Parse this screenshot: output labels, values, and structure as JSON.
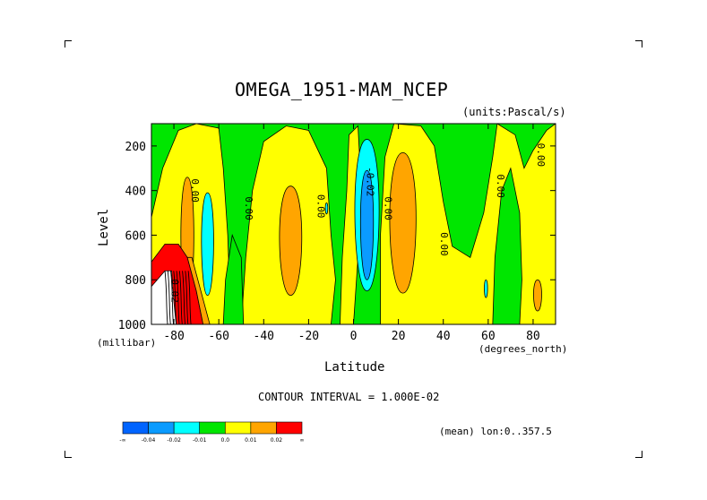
{
  "figure": {
    "title": "OMEGA_1951-MAM_NCEP",
    "units_label": "(units:Pascal/s)",
    "ylabel": "Level",
    "y_unit_label": "(millibar)",
    "xlabel": "Latitude",
    "x_unit_label": "(degrees_north)",
    "contour_interval_label": "CONTOUR INTERVAL = 1.000E-02",
    "mean_label": "(mean) lon:0..357.5"
  },
  "chart_data": {
    "type": "heatmap",
    "title": "OMEGA_1951-MAM_NCEP",
    "xlabel": "Latitude",
    "ylabel": "Level",
    "x_unit": "degrees_north",
    "y_unit": "millibar",
    "units": "Pascal/s",
    "xlim": [
      -90,
      90
    ],
    "ylim": [
      1000,
      100
    ],
    "y_reversed": true,
    "x_ticks": [
      -80,
      -60,
      -40,
      -20,
      0,
      20,
      40,
      60,
      80
    ],
    "y_ticks": [
      200,
      400,
      600,
      800,
      1000
    ],
    "contour_interval": 0.01,
    "contour_labels": [
      {
        "text": "0.00",
        "x": -72,
        "y": 400
      },
      {
        "text": "0.00",
        "x": -48,
        "y": 480
      },
      {
        "text": "0.00",
        "x": -16,
        "y": 470
      },
      {
        "text": "-0.02",
        "x": 6,
        "y": 360
      },
      {
        "text": "0.00",
        "x": 14,
        "y": 480
      },
      {
        "text": "0.00",
        "x": 39,
        "y": 640
      },
      {
        "text": "0.00",
        "x": 64,
        "y": 380
      },
      {
        "text": "0.00",
        "x": 82,
        "y": 240
      },
      {
        "text": "0.02",
        "x": -81,
        "y": 850
      }
    ],
    "colorbar": {
      "colors": [
        "#0064ff",
        "#0a9bff",
        "#00ffff",
        "#00e600",
        "#ffff00",
        "#ffa500",
        "#ff0000"
      ],
      "labels": [
        "-∞",
        "-0.04",
        "-0.02",
        "-0.01",
        "0.0",
        "0.01",
        "0.02",
        "∞"
      ]
    }
  }
}
